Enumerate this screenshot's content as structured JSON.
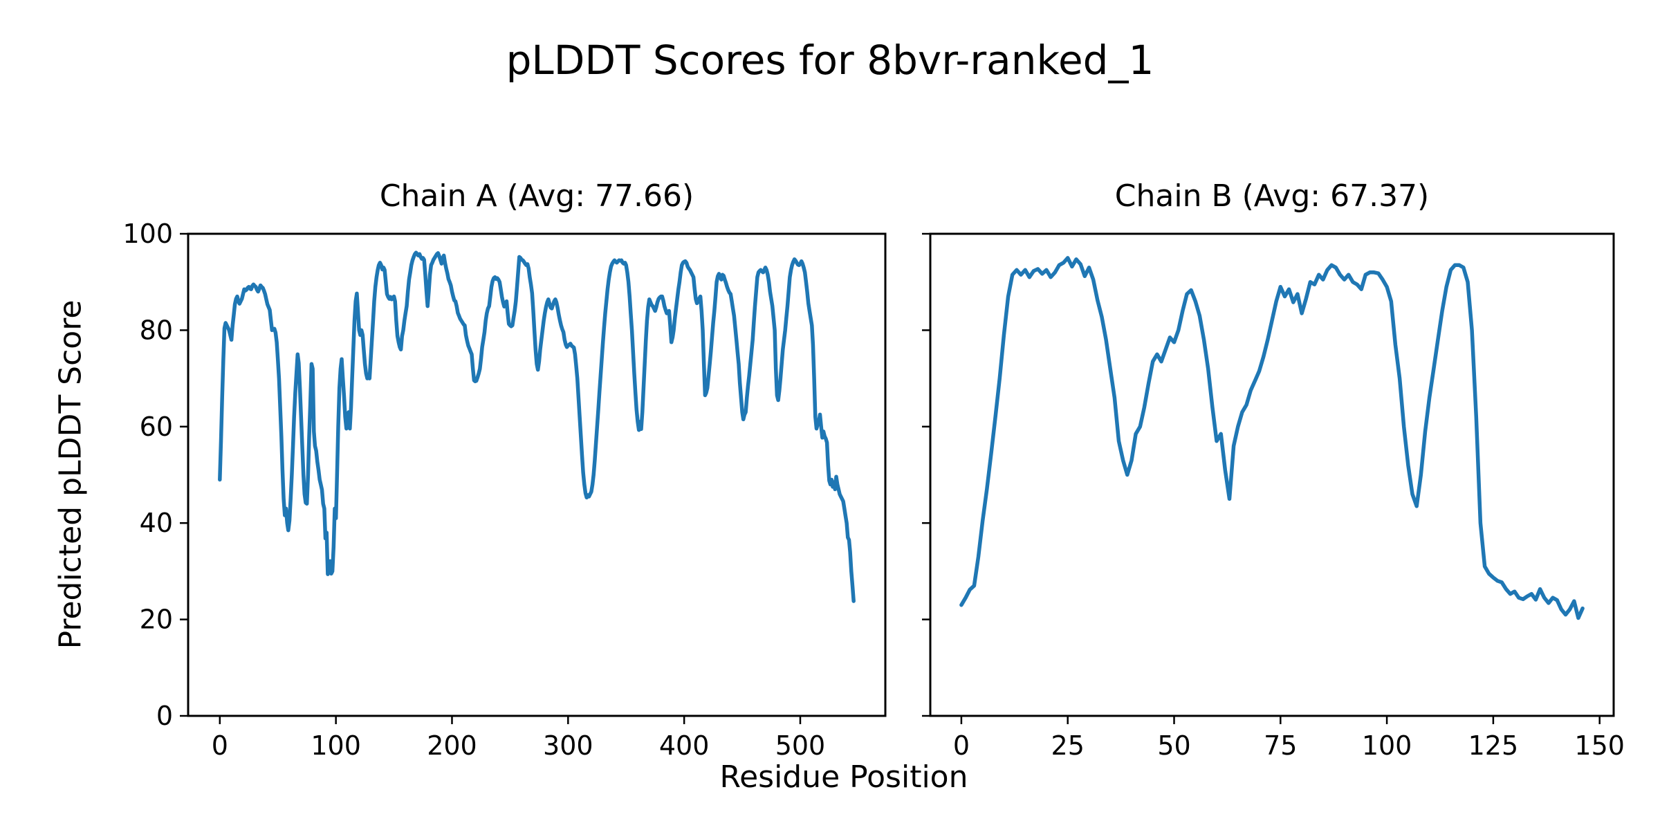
{
  "figure": {
    "title": "pLDDT Scores for 8bvr-ranked_1",
    "xlabel": "Residue Position",
    "ylabel": "Predicted pLDDT Score",
    "background_color": "#ffffff",
    "text_color": "#000000",
    "line_color": "#1f77b4"
  },
  "chart_data": [
    {
      "type": "line",
      "title": "Chain A (Avg: 77.66)",
      "chain": "A",
      "avg": 77.66,
      "xlabel": "Residue Position",
      "ylabel": "Predicted pLDDT Score",
      "xlim": [
        -27.3,
        573.3
      ],
      "ylim": [
        0,
        100
      ],
      "xticks": [
        0,
        100,
        200,
        300,
        400,
        500
      ],
      "yticks": [
        0,
        20,
        40,
        60,
        80,
        100
      ],
      "show_ytick_labels": true,
      "grid": false,
      "legend": "none",
      "x_start": 0,
      "x_step": 1,
      "values": [
        49,
        57,
        66,
        74,
        80.4,
        81.5,
        81,
        80.5,
        80,
        79,
        78,
        81,
        83.2,
        85.4,
        86.5,
        87,
        86,
        85.5,
        86,
        86.5,
        87.5,
        88.5,
        88.2,
        88.4,
        88.8,
        89,
        88.6,
        88.5,
        89.2,
        89.5,
        89.2,
        89,
        88.4,
        88,
        88.6,
        89.3,
        89,
        88.8,
        88.2,
        87.5,
        86.4,
        85.4,
        84.8,
        84.2,
        82,
        80,
        80.2,
        80.3,
        79.5,
        77.5,
        74,
        70,
        64,
        58,
        51,
        45,
        41.6,
        43,
        40,
        38.5,
        40.5,
        45,
        50,
        56,
        62,
        67,
        71,
        75,
        73.2,
        68,
        62,
        56,
        50,
        46,
        44.2,
        44,
        50,
        58,
        65,
        73,
        72,
        59,
        56,
        55,
        52.7,
        51,
        49,
        48,
        46.9,
        44,
        43,
        36.8,
        38,
        29.4,
        30.5,
        32.1,
        29.5,
        30,
        35,
        43,
        41,
        50,
        60,
        68,
        72,
        74,
        70,
        66.4,
        62,
        59.6,
        61,
        63,
        59.6,
        64,
        70,
        76,
        82,
        86,
        87.6,
        84,
        80,
        79,
        80,
        79,
        76,
        73,
        71,
        70,
        70.5,
        70,
        74,
        78,
        82,
        86,
        89,
        91,
        92.5,
        93.5,
        94,
        93.5,
        92.6,
        93,
        92.5,
        90,
        87.5,
        86.9,
        86.5,
        86.9,
        86.4,
        86.6,
        87,
        86,
        82,
        78.8,
        77.5,
        76.5,
        76,
        78.8,
        80,
        82,
        83.5,
        85,
        88,
        90.5,
        92,
        93.5,
        94.5,
        95.2,
        95.8,
        96.1,
        95.8,
        95.5,
        95.8,
        95.2,
        94.8,
        95,
        94.6,
        91.5,
        88,
        85,
        88,
        91.5,
        93.5,
        94,
        94.6,
        95,
        95.4,
        95.8,
        96,
        95.4,
        94.6,
        93.8,
        95,
        95.5,
        94,
        92.8,
        91.8,
        90.6,
        90,
        89.3,
        88,
        87,
        86.2,
        86,
        85,
        83.6,
        83,
        82.4,
        82,
        81.6,
        81.2,
        81,
        79,
        77.8,
        76.8,
        76.2,
        75.6,
        75,
        72,
        69.6,
        69.4,
        69.5,
        70.2,
        71,
        72,
        74,
        76.5,
        78,
        79.6,
        82,
        83.5,
        84.5,
        85,
        87,
        89,
        90.2,
        90.8,
        91,
        90.6,
        90.8,
        90.5,
        90,
        88.5,
        86.9,
        85.8,
        84.9,
        85.4,
        86,
        83.5,
        81.3,
        81,
        80.8,
        81,
        82.5,
        84,
        86,
        89,
        92,
        95.2,
        95,
        94.6,
        94.5,
        94.2,
        93.8,
        93.5,
        93.7,
        92.8,
        91,
        89.5,
        87.7,
        84,
        80,
        76,
        73,
        71.8,
        73.5,
        76,
        78,
        80,
        82,
        83.5,
        84.8,
        85.8,
        86.4,
        85.5,
        84.7,
        84.5,
        85.3,
        86,
        86.4,
        85.8,
        84.6,
        83.2,
        82,
        81,
        80.2,
        79.6,
        78,
        77,
        76.5,
        76.8,
        77,
        77.2,
        76.8,
        76.6,
        76.4,
        75,
        72.5,
        70,
        66,
        62,
        58,
        54,
        50.5,
        48,
        46.2,
        45.3,
        45.8,
        45.5,
        46,
        46.5,
        48,
        50,
        53,
        56.5,
        60,
        63.5,
        67,
        70.5,
        74,
        77.5,
        80.5,
        83.5,
        86,
        88.5,
        90.5,
        92,
        93.2,
        93.8,
        94.2,
        94.5,
        94.2,
        94,
        94.3,
        94.5,
        94.4,
        94.5,
        94,
        93.8,
        94,
        93.5,
        92,
        90,
        87,
        83.5,
        80,
        75.5,
        71,
        67,
        63.5,
        61,
        59.3,
        61,
        59.5,
        63,
        68,
        73,
        78,
        82,
        84.8,
        86.4,
        85.8,
        85.2,
        85,
        84.5,
        84,
        84.8,
        85.8,
        86.5,
        86.8,
        87,
        87,
        86.2,
        85,
        84.2,
        83.5,
        83.8,
        84,
        81,
        77.5,
        78.5,
        80,
        82.5,
        84.5,
        86.5,
        88.5,
        90,
        92,
        93.5,
        94,
        94.2,
        94.3,
        94,
        93.2,
        92.8,
        92.5,
        92,
        91.5,
        91,
        88.5,
        86.5,
        85.6,
        86,
        86.6,
        87,
        84,
        80,
        73,
        66.5,
        67,
        68,
        70.5,
        73,
        75.5,
        78.5,
        81.5,
        84,
        87,
        90,
        91.2,
        91.7,
        91,
        90.5,
        91.5,
        91.3,
        90.5,
        89.8,
        89,
        88.3,
        87.8,
        87.5,
        86,
        84.5,
        83,
        80.5,
        78,
        75.5,
        73,
        69,
        66,
        63,
        61.5,
        62.5,
        63,
        66,
        68.5,
        70.5,
        73,
        75.5,
        78,
        81.5,
        85,
        88,
        91,
        92,
        92.3,
        92.5,
        92.2,
        92,
        92.5,
        93,
        92.5,
        91.5,
        90,
        88,
        86.5,
        85,
        82.5,
        80,
        72,
        66.5,
        65.5,
        67.5,
        70,
        73,
        76,
        78,
        80,
        82.5,
        85,
        88,
        91,
        92.5,
        93.5,
        94.2,
        94.7,
        94.4,
        94,
        93.6,
        93.5,
        93.8,
        94.3,
        93.8,
        93,
        92,
        90,
        88,
        85.6,
        84,
        82.5,
        81,
        77,
        70,
        62,
        59.6,
        60.5,
        61,
        62.5,
        60,
        57.7,
        59,
        58,
        57.5,
        56.7,
        52,
        48.8,
        48,
        49,
        47.5,
        48.5,
        47,
        49.6,
        48,
        47,
        46,
        45.5,
        45,
        44.5,
        43,
        41.5,
        40,
        37,
        36.5,
        34,
        30,
        27,
        23.8
      ]
    },
    {
      "type": "line",
      "title": "Chain B (Avg: 67.37)",
      "chain": "B",
      "avg": 67.37,
      "xlabel": "Residue Position",
      "ylabel": "Predicted pLDDT Score",
      "xlim": [
        -7.3,
        153.3
      ],
      "ylim": [
        0,
        100
      ],
      "xticks": [
        0,
        25,
        50,
        75,
        100,
        125,
        150
      ],
      "yticks": [
        0,
        20,
        40,
        60,
        80,
        100
      ],
      "show_ytick_labels": false,
      "grid": false,
      "legend": "none",
      "x_start": 0,
      "x_step": 1,
      "values": [
        23,
        24.5,
        26.2,
        27,
        33,
        40.5,
        47,
        54.4,
        62,
        70,
        79,
        87,
        91.5,
        92.5,
        91.5,
        92.5,
        91,
        92.3,
        92.7,
        91.7,
        92.5,
        91,
        92,
        93.5,
        94,
        95,
        93.2,
        94.7,
        93.7,
        91.2,
        93,
        90.5,
        86.2,
        82.8,
        78,
        72,
        66,
        57,
        53,
        50,
        53,
        58.5,
        60,
        64,
        69,
        73.5,
        75,
        73.5,
        76,
        78.5,
        77.5,
        80,
        84,
        87.5,
        88.3,
        86,
        83,
        78,
        72,
        64,
        57,
        58.5,
        51,
        45,
        56,
        60,
        63,
        64.5,
        67.5,
        69.5,
        71.5,
        74.5,
        78,
        82,
        86,
        89,
        87,
        88.5,
        85.8,
        87.5,
        83.5,
        86.5,
        90,
        89.5,
        91.5,
        90.5,
        92.5,
        93.5,
        93,
        91.5,
        90.5,
        91.5,
        90,
        89.5,
        88.5,
        91.5,
        92,
        92,
        91.8,
        90.5,
        89,
        86,
        77,
        70,
        60,
        52,
        46,
        43.5,
        50,
        59,
        66,
        72,
        78,
        84,
        89,
        92.5,
        93.5,
        93.5,
        93,
        90,
        80,
        62,
        40,
        31,
        29.5,
        28.7,
        28,
        27.7,
        26.3,
        25.3,
        25.8,
        24.5,
        24.2,
        24.8,
        25.3,
        24.1,
        26.3,
        24.5,
        23.4,
        24.5,
        24,
        22.1,
        21,
        22.1,
        23.8,
        20.3,
        22.3
      ]
    }
  ]
}
